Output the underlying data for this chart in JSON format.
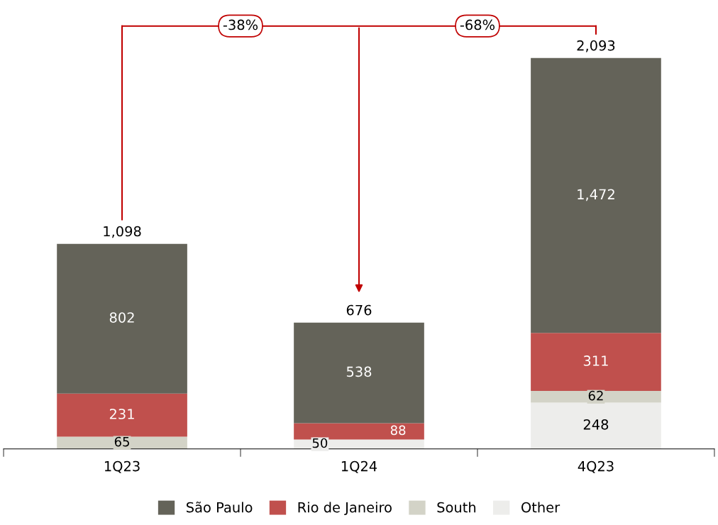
{
  "chart_data": {
    "type": "bar",
    "stacked": true,
    "categories": [
      "1Q23",
      "1Q24",
      "4Q23"
    ],
    "series": [
      {
        "name": "Other",
        "color": "#ededeb",
        "values": [
          null,
          50,
          248
        ],
        "value_labels": [
          null,
          "50",
          "248"
        ]
      },
      {
        "name": "South",
        "color": "#d3d3c7",
        "values": [
          65,
          null,
          62
        ],
        "value_labels": [
          "65",
          null,
          "62"
        ]
      },
      {
        "name": "Rio de Janeiro",
        "color": "#c0504d",
        "values": [
          231,
          88,
          311
        ],
        "value_labels": [
          "231",
          "88",
          "311"
        ]
      },
      {
        "name": "São Paulo",
        "color": "#646359",
        "values": [
          802,
          538,
          1472
        ],
        "value_labels": [
          "802",
          "538",
          "1,472"
        ]
      }
    ],
    "totals": [
      "1,098",
      "676",
      "2,093"
    ],
    "annotations": [
      "-38%",
      "-68%"
    ],
    "legend": "bottom",
    "grid": false
  }
}
